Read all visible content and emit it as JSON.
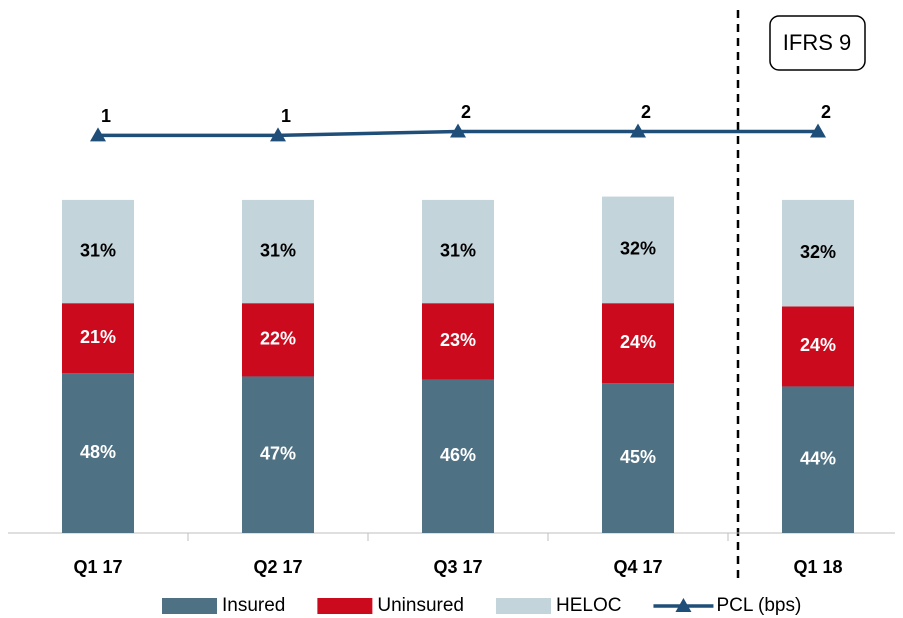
{
  "chart_data": {
    "type": "bar",
    "stacked": true,
    "categories": [
      "Q1 17",
      "Q2 17",
      "Q3 17",
      "Q4 17",
      "Q1 18"
    ],
    "ylim": [
      0,
      130
    ],
    "y2lim": [
      -100,
      10
    ],
    "series": [
      {
        "name": "Insured",
        "color": "#4e7183",
        "values": [
          48,
          47,
          46,
          45,
          44
        ],
        "value_labels": [
          "48%",
          "47%",
          "46%",
          "45%",
          "44%"
        ],
        "label_color": "#ffffff"
      },
      {
        "name": "Uninsured",
        "color": "#cc0a1e",
        "values": [
          21,
          22,
          23,
          24,
          24
        ],
        "value_labels": [
          "21%",
          "22%",
          "23%",
          "24%",
          "24%"
        ],
        "label_color": "#ffffff"
      },
      {
        "name": "HELOC",
        "color": "#c4d4db",
        "values": [
          31,
          31,
          31,
          32,
          32
        ],
        "value_labels": [
          "31%",
          "31%",
          "31%",
          "32%",
          "32%"
        ],
        "label_color": "#000000"
      },
      {
        "name": "PCL (bps)",
        "type": "line",
        "axis": "y2",
        "color": "#1f4e79",
        "values": [
          1,
          1,
          2,
          2,
          2
        ]
      }
    ],
    "annotation": "IFRS 9",
    "legend": "bottom"
  }
}
